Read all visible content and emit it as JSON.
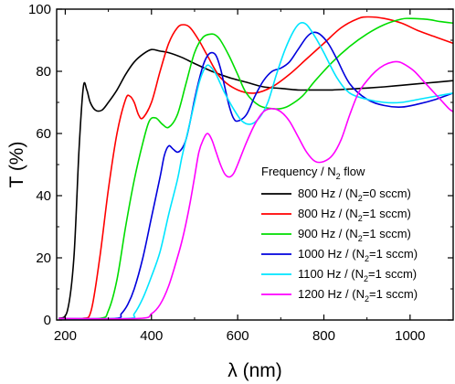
{
  "chart_data": {
    "type": "line",
    "xlabel": "λ (nm)",
    "ylabel": "T (%)",
    "xlim": [
      180,
      1100
    ],
    "ylim": [
      0,
      100
    ],
    "xticks": [
      200,
      400,
      600,
      800,
      1000
    ],
    "yticks": [
      0,
      20,
      40,
      60,
      80,
      100
    ],
    "grid": false,
    "legend": {
      "title_parts": [
        "Frequency / N",
        "2",
        " flow"
      ],
      "placement": "bottom-right"
    },
    "series": [
      {
        "name": "800 Hz / (N2=0 sccm)",
        "label_parts": [
          "800 Hz / (N",
          "2",
          "=0 sccm)"
        ],
        "color": "#000000",
        "x": [
          185,
          205,
          220,
          232,
          242,
          250,
          258,
          270,
          285,
          300,
          320,
          340,
          360,
          380,
          400,
          420,
          440,
          470,
          500,
          540,
          580,
          620,
          660,
          700,
          740,
          780,
          820,
          860,
          900,
          940,
          980,
          1020,
          1060,
          1100
        ],
        "y": [
          0.5,
          3,
          20,
          55,
          75,
          74,
          70,
          67.5,
          67.5,
          70,
          74,
          79,
          83,
          85.5,
          87,
          86.5,
          86,
          84.5,
          82.5,
          80,
          78,
          76.5,
          75,
          74.5,
          74,
          74,
          74,
          74.3,
          74.6,
          75,
          75.5,
          76,
          76.5,
          77
        ]
      },
      {
        "name": "800 Hz / (N2=1 sccm)",
        "label_parts": [
          "800 Hz / (N",
          "2",
          "=1 sccm)"
        ],
        "color": "#ff0000",
        "x": [
          185,
          240,
          260,
          280,
          300,
          320,
          340,
          350,
          360,
          370,
          380,
          400,
          420,
          440,
          460,
          475,
          490,
          510,
          530,
          560,
          600,
          640,
          680,
          720,
          760,
          800,
          840,
          880,
          905,
          940,
          980,
          1020,
          1060,
          1100
        ],
        "y": [
          0.5,
          0.5,
          3,
          20,
          42,
          60,
          71,
          72,
          70,
          66,
          65,
          70,
          80,
          89,
          94,
          95,
          94,
          90,
          85,
          78,
          74,
          73,
          75,
          79,
          84,
          89,
          94,
          97,
          97.5,
          97,
          95.5,
          93,
          91,
          89
        ]
      },
      {
        "name": "900 Hz / (N2=1 sccm)",
        "label_parts": [
          "900 Hz / (N",
          "2",
          "=1 sccm)"
        ],
        "color": "#00dd00",
        "x": [
          185,
          280,
          300,
          320,
          340,
          360,
          380,
          395,
          410,
          425,
          440,
          460,
          480,
          500,
          520,
          540,
          550,
          560,
          580,
          600,
          620,
          650,
          680,
          700,
          720,
          750,
          780,
          820,
          860,
          900,
          940,
          980,
          1000,
          1040,
          1070,
          1100
        ],
        "y": [
          0.5,
          0.5,
          3,
          13,
          30,
          45,
          57,
          64,
          65,
          63,
          62,
          66,
          76,
          86,
          91,
          92,
          91.5,
          90,
          85,
          79,
          73,
          69,
          68,
          68,
          69,
          72,
          77,
          83,
          88,
          92,
          95,
          96.8,
          97,
          96.7,
          96,
          95.5
        ]
      },
      {
        "name": "1000 Hz / (N2=1 sccm)",
        "label_parts": [
          "1000 Hz / (N",
          "2",
          "=1 sccm)"
        ],
        "color": "#0000dd",
        "x": [
          185,
          315,
          330,
          345,
          360,
          380,
          400,
          420,
          430,
          440,
          450,
          460,
          470,
          480,
          490,
          500,
          510,
          520,
          530,
          540,
          550,
          560,
          570,
          580,
          590,
          600,
          620,
          640,
          660,
          680,
          700,
          720,
          740,
          760,
          775,
          790,
          810,
          830,
          860,
          900,
          940,
          980,
          1020,
          1060,
          1100
        ],
        "y": [
          0.5,
          0.5,
          2,
          5,
          10,
          20,
          33,
          46,
          53,
          56,
          55,
          54,
          55,
          58,
          64,
          71,
          77,
          82,
          85,
          86,
          85,
          81,
          75,
          69,
          65,
          64,
          66,
          72,
          77,
          80,
          81,
          83,
          87,
          91,
          92.5,
          92,
          89,
          84,
          76,
          71,
          69,
          68.5,
          69.5,
          71,
          73
        ]
      },
      {
        "name": "1100 Hz / (N2=1 sccm)",
        "label_parts": [
          "1100 Hz / (N",
          "2",
          "=1 sccm)"
        ],
        "color": "#00e5ff",
        "x": [
          185,
          345,
          360,
          380,
          400,
          420,
          440,
          460,
          470,
          480,
          490,
          500,
          510,
          520,
          530,
          540,
          550,
          560,
          570,
          590,
          610,
          630,
          650,
          670,
          690,
          710,
          730,
          745,
          760,
          780,
          800,
          830,
          860,
          900,
          940,
          980,
          1020,
          1060,
          1100
        ],
        "y": [
          0.5,
          0.5,
          2,
          7,
          14,
          22,
          34,
          45,
          52,
          58,
          64,
          70,
          76,
          80,
          82,
          81,
          79,
          76,
          73,
          68,
          64,
          63,
          65,
          70,
          79,
          87,
          93,
          95.5,
          95,
          91,
          86,
          78,
          73,
          71,
          70,
          70,
          71,
          72,
          73
        ]
      },
      {
        "name": "1200 Hz / (N2=1 sccm)",
        "label_parts": [
          "1200 Hz / (N",
          "2",
          "=1 sccm)"
        ],
        "color": "#ff00ff",
        "x": [
          185,
          370,
          400,
          420,
          440,
          460,
          470,
          480,
          490,
          500,
          510,
          520,
          530,
          540,
          550,
          560,
          570,
          580,
          590,
          600,
          620,
          640,
          660,
          680,
          700,
          720,
          740,
          760,
          780,
          800,
          820,
          840,
          860,
          880,
          900,
          920,
          940,
          960,
          975,
          990,
          1010,
          1030,
          1050,
          1070,
          1090,
          1100
        ],
        "y": [
          0.5,
          0.5,
          2,
          5,
          11,
          20,
          25,
          31,
          38,
          46,
          54,
          58,
          60,
          58,
          54,
          50,
          47,
          46,
          47,
          50,
          57,
          63,
          67,
          68,
          67,
          64,
          59,
          54,
          51,
          51,
          53,
          58,
          66,
          73,
          77,
          80,
          82,
          83,
          83,
          82,
          80,
          77,
          74,
          71,
          68,
          67
        ]
      }
    ]
  }
}
